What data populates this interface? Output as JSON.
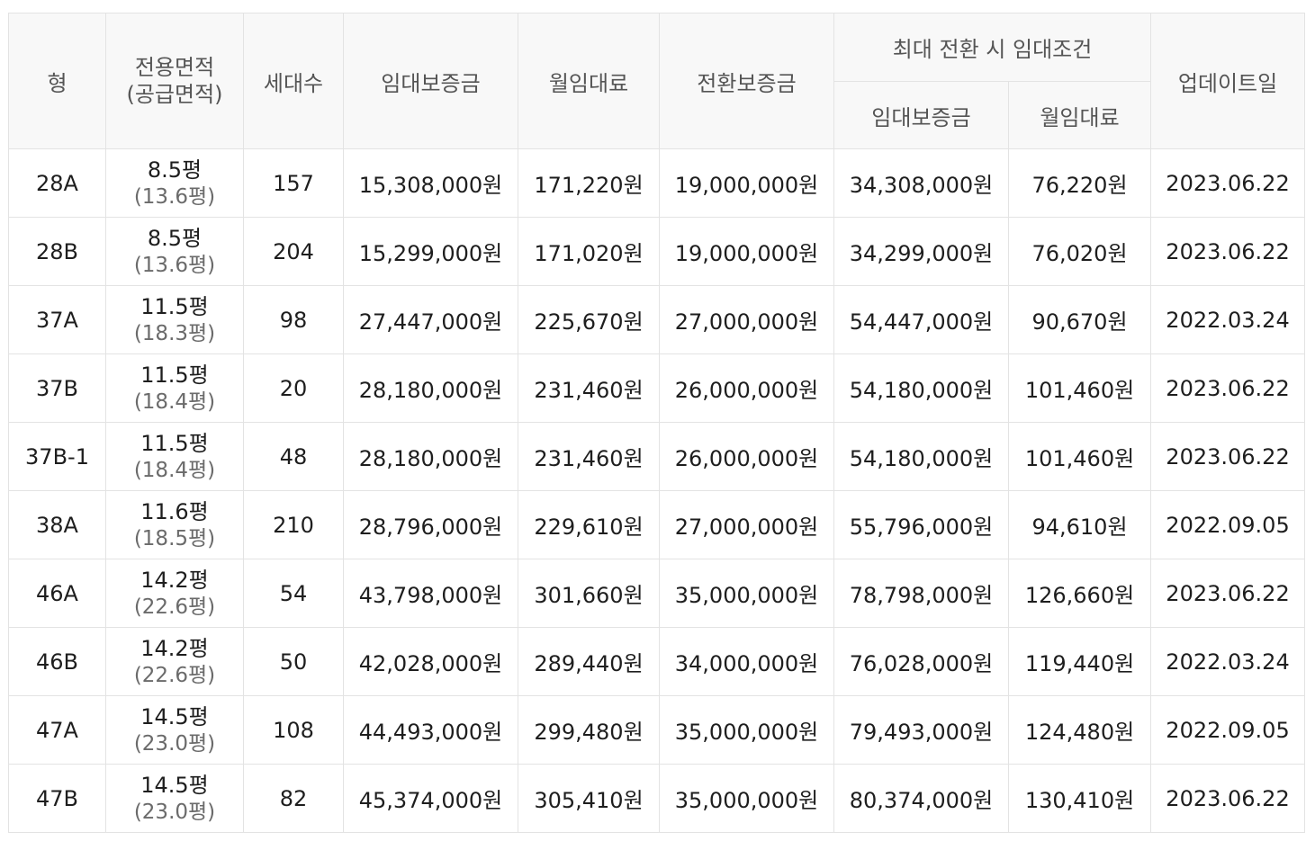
{
  "table": {
    "headers": {
      "type": "형",
      "area_line1": "전용면적",
      "area_line2": "(공급면적)",
      "households": "세대수",
      "deposit": "임대보증금",
      "monthly_rent": "월임대료",
      "conversion_deposit": "전환보증금",
      "max_conversion_group": "최대 전환 시 임대조건",
      "max_deposit": "임대보증금",
      "max_monthly_rent": "월임대료",
      "update_date": "업데이트일"
    },
    "rows": [
      {
        "type": "28A",
        "area": "8.5평",
        "supply": "(13.6평)",
        "households": "157",
        "deposit": "15,308,000원",
        "rent": "171,220원",
        "conversion": "19,000,000원",
        "max_deposit": "34,308,000원",
        "max_rent": "76,220원",
        "updated": "2023.06.22"
      },
      {
        "type": "28B",
        "area": "8.5평",
        "supply": "(13.6평)",
        "households": "204",
        "deposit": "15,299,000원",
        "rent": "171,020원",
        "conversion": "19,000,000원",
        "max_deposit": "34,299,000원",
        "max_rent": "76,020원",
        "updated": "2023.06.22"
      },
      {
        "type": "37A",
        "area": "11.5평",
        "supply": "(18.3평)",
        "households": "98",
        "deposit": "27,447,000원",
        "rent": "225,670원",
        "conversion": "27,000,000원",
        "max_deposit": "54,447,000원",
        "max_rent": "90,670원",
        "updated": "2022.03.24"
      },
      {
        "type": "37B",
        "area": "11.5평",
        "supply": "(18.4평)",
        "households": "20",
        "deposit": "28,180,000원",
        "rent": "231,460원",
        "conversion": "26,000,000원",
        "max_deposit": "54,180,000원",
        "max_rent": "101,460원",
        "updated": "2023.06.22"
      },
      {
        "type": "37B-1",
        "area": "11.5평",
        "supply": "(18.4평)",
        "households": "48",
        "deposit": "28,180,000원",
        "rent": "231,460원",
        "conversion": "26,000,000원",
        "max_deposit": "54,180,000원",
        "max_rent": "101,460원",
        "updated": "2023.06.22"
      },
      {
        "type": "38A",
        "area": "11.6평",
        "supply": "(18.5평)",
        "households": "210",
        "deposit": "28,796,000원",
        "rent": "229,610원",
        "conversion": "27,000,000원",
        "max_deposit": "55,796,000원",
        "max_rent": "94,610원",
        "updated": "2022.09.05"
      },
      {
        "type": "46A",
        "area": "14.2평",
        "supply": "(22.6평)",
        "households": "54",
        "deposit": "43,798,000원",
        "rent": "301,660원",
        "conversion": "35,000,000원",
        "max_deposit": "78,798,000원",
        "max_rent": "126,660원",
        "updated": "2023.06.22"
      },
      {
        "type": "46B",
        "area": "14.2평",
        "supply": "(22.6평)",
        "households": "50",
        "deposit": "42,028,000원",
        "rent": "289,440원",
        "conversion": "34,000,000원",
        "max_deposit": "76,028,000원",
        "max_rent": "119,440원",
        "updated": "2022.03.24"
      },
      {
        "type": "47A",
        "area": "14.5평",
        "supply": "(23.0평)",
        "households": "108",
        "deposit": "44,493,000원",
        "rent": "299,480원",
        "conversion": "35,000,000원",
        "max_deposit": "79,493,000원",
        "max_rent": "124,480원",
        "updated": "2022.09.05"
      },
      {
        "type": "47B",
        "area": "14.5평",
        "supply": "(23.0평)",
        "households": "82",
        "deposit": "45,374,000원",
        "rent": "305,410원",
        "conversion": "35,000,000원",
        "max_deposit": "80,374,000원",
        "max_rent": "130,410원",
        "updated": "2023.06.22"
      }
    ]
  }
}
